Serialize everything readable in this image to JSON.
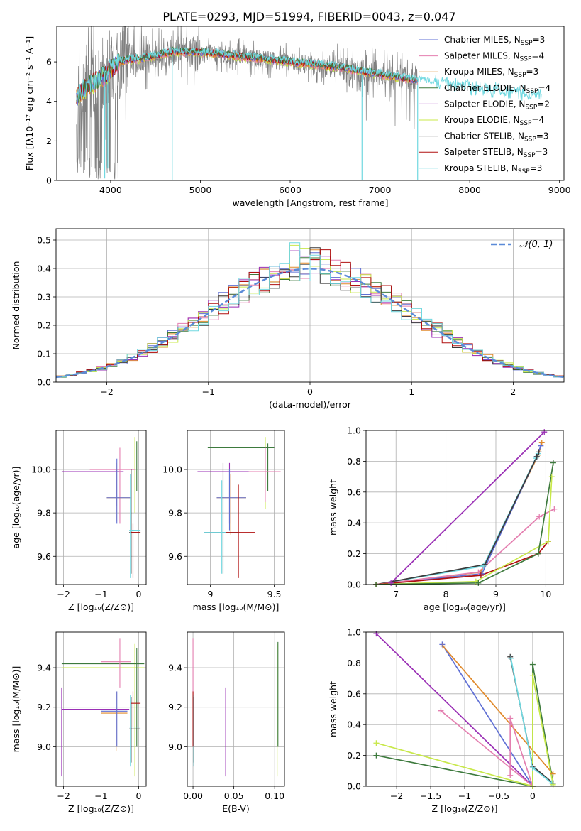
{
  "figure": {
    "title": "PLATE=0293, MJD=51994, FIBERID=0043, z=0.047"
  },
  "colors": {
    "chabrier_miles": "#5f6fd4",
    "salpeter_miles": "#e47fb0",
    "kroupa_miles": "#e08a2c",
    "chabrier_elodie": "#3d7a3d",
    "salpeter_elodie": "#9a2fb5",
    "kroupa_elodie": "#c8e84a",
    "chabrier_stelib": "#3a3a3a",
    "salpeter_stelib": "#b01010",
    "kroupa_stelib": "#70d8e0",
    "observed": "#808080",
    "normal": "#5b8bd8"
  },
  "chart_data": [
    {
      "id": "spectrum",
      "type": "line",
      "xlabel": "wavelength [Angstrom, rest frame]",
      "ylabel": "Flux [fλ10⁻¹⁷ erg cm⁻² s⁻¹ A⁻¹]",
      "xlim": [
        3400,
        9050
      ],
      "ylim": [
        0,
        7.8
      ],
      "xticks": [
        4000,
        5000,
        6000,
        7000,
        8000,
        9000
      ],
      "yticks": [
        0,
        2,
        4,
        6
      ],
      "legend_position": "top-right",
      "legend": [
        {
          "name": "Chabrier MILES, N",
          "sub": "SSP",
          "tail": "=3",
          "color_key": "chabrier_miles"
        },
        {
          "name": "Salpeter MILES, N",
          "sub": "SSP",
          "tail": "=4",
          "color_key": "salpeter_miles"
        },
        {
          "name": "Kroupa MILES, N",
          "sub": "SSP",
          "tail": "=3",
          "color_key": "kroupa_miles"
        },
        {
          "name": "Chabrier ELODIE, N",
          "sub": "SSP",
          "tail": "=4",
          "color_key": "chabrier_elodie"
        },
        {
          "name": "Salpeter ELODIE, N",
          "sub": "SSP",
          "tail": "=2",
          "color_key": "salpeter_elodie"
        },
        {
          "name": "Kroupa ELODIE, N",
          "sub": "SSP",
          "tail": "=4",
          "color_key": "kroupa_elodie"
        },
        {
          "name": "Chabrier STELIB, N",
          "sub": "SSP",
          "tail": "=3",
          "color_key": "chabrier_stelib"
        },
        {
          "name": "Salpeter STELIB, N",
          "sub": "SSP",
          "tail": "=3",
          "color_key": "salpeter_stelib"
        },
        {
          "name": "Kroupa STELIB, N",
          "sub": "SSP",
          "tail": "=3",
          "color_key": "kroupa_stelib"
        }
      ],
      "continuum": [
        [
          3620,
          4.2
        ],
        [
          3700,
          4.6
        ],
        [
          3800,
          4.9
        ],
        [
          3900,
          5.2
        ],
        [
          4000,
          5.6
        ],
        [
          4100,
          6.0
        ],
        [
          4200,
          6.1
        ],
        [
          4300,
          6.15
        ],
        [
          4400,
          6.2
        ],
        [
          4500,
          6.3
        ],
        [
          4700,
          6.55
        ],
        [
          4900,
          6.5
        ],
        [
          5100,
          6.45
        ],
        [
          5300,
          6.35
        ],
        [
          5500,
          6.25
        ],
        [
          5700,
          6.15
        ],
        [
          5900,
          6.05
        ],
        [
          6100,
          5.95
        ],
        [
          6300,
          5.85
        ],
        [
          6500,
          5.75
        ],
        [
          6700,
          5.6
        ],
        [
          6900,
          5.45
        ],
        [
          7100,
          5.3
        ],
        [
          7300,
          5.15
        ],
        [
          7500,
          5.0
        ],
        [
          7700,
          4.85
        ],
        [
          7900,
          4.7
        ],
        [
          8100,
          4.55
        ],
        [
          8300,
          4.45
        ],
        [
          8500,
          4.35
        ],
        [
          8800,
          4.25
        ]
      ],
      "observed_range": [
        3620,
        7420
      ],
      "dips": [
        {
          "x": 3934,
          "y": 0.1
        },
        {
          "x": 3968,
          "y": 0.6
        },
        {
          "x": 4686,
          "y": 0.0
        },
        {
          "x": 6800,
          "y": 0.0
        },
        {
          "x": 7420,
          "y": 0.0
        }
      ]
    },
    {
      "id": "residuals",
      "type": "step",
      "xlabel": "(data-model)/error",
      "ylabel": "Normed distribution",
      "xlim": [
        -2.5,
        2.5
      ],
      "ylim": [
        0,
        0.54
      ],
      "xticks": [
        -2,
        -1,
        0,
        1,
        2
      ],
      "yticks": [
        0.0,
        0.1,
        0.2,
        0.3,
        0.4,
        0.5
      ],
      "grid": true,
      "legend_position": "top-right",
      "normal_label": "𝒩(0, 1)",
      "bin_width": 0.1,
      "bin_start": -2.5
    },
    {
      "id": "age_vs_Z",
      "type": "errorbar",
      "xlabel": "Z [log₁₀(Z/Z⊙)]",
      "ylabel": "age  [log₁₀(age/yr)]",
      "xlim": [
        -2.2,
        0.2
      ],
      "ylim": [
        9.47,
        10.18
      ],
      "xticks": [
        -2,
        -1,
        0
      ],
      "yticks": [
        9.6,
        9.8,
        10.0
      ],
      "grid": true
    },
    {
      "id": "age_vs_mass",
      "type": "errorbar",
      "xlabel": "mass [log₁₀(M/M⊙)]",
      "ylabel": "",
      "xlim": [
        8.82,
        9.58
      ],
      "ylim": [
        9.47,
        10.18
      ],
      "xticks": [
        9.0,
        9.5
      ],
      "yticks": [
        9.6,
        9.8,
        10.0
      ],
      "grid": true
    },
    {
      "id": "weight_vs_age",
      "type": "line",
      "xlabel": "age  [log₁₀(age/yr)]",
      "ylabel": "mass weight",
      "xlim": [
        6.4,
        10.35
      ],
      "ylim": [
        0,
        1.0
      ],
      "xticks": [
        7,
        8,
        9,
        10
      ],
      "yticks": [
        0.0,
        0.2,
        0.4,
        0.6,
        0.8,
        1.0
      ],
      "grid": true,
      "series": [
        {
          "color_key": "salpeter_elodie",
          "x": [
            6.9,
            9.97
          ],
          "y": [
            0.01,
            0.99
          ]
        },
        {
          "color_key": "kroupa_miles",
          "x": [
            6.6,
            8.7,
            9.85,
            9.92
          ],
          "y": [
            0.0,
            0.08,
            0.84,
            0.92
          ]
        },
        {
          "color_key": "chabrier_miles",
          "x": [
            6.6,
            8.72,
            9.82,
            9.9
          ],
          "y": [
            0.0,
            0.07,
            0.83,
            0.9
          ]
        },
        {
          "color_key": "kroupa_stelib",
          "x": [
            6.6,
            8.75,
            9.8,
            9.85
          ],
          "y": [
            0.0,
            0.12,
            0.82,
            0.85
          ]
        },
        {
          "color_key": "chabrier_stelib",
          "x": [
            6.6,
            8.78,
            9.82,
            9.86
          ],
          "y": [
            0.0,
            0.13,
            0.83,
            0.86
          ]
        },
        {
          "color_key": "salpeter_miles",
          "x": [
            6.6,
            8.65,
            9.87,
            10.17
          ],
          "y": [
            0.0,
            0.08,
            0.44,
            0.49
          ]
        },
        {
          "color_key": "salpeter_stelib",
          "x": [
            6.6,
            8.7,
            9.85,
            10.05
          ],
          "y": [
            0.0,
            0.06,
            0.2,
            0.28
          ]
        },
        {
          "color_key": "kroupa_elodie",
          "x": [
            6.6,
            8.6,
            10.05,
            10.12
          ],
          "y": [
            0.0,
            0.02,
            0.28,
            0.7
          ]
        },
        {
          "color_key": "chabrier_elodie",
          "x": [
            6.6,
            8.65,
            9.85,
            10.15
          ],
          "y": [
            0.0,
            0.01,
            0.2,
            0.79
          ]
        }
      ]
    },
    {
      "id": "mass_vs_Z",
      "type": "errorbar",
      "xlabel": "Z [log₁₀(Z/Z⊙)]",
      "ylabel": "mass [log₁₀(M/M⊙)]",
      "xlim": [
        -2.2,
        0.2
      ],
      "ylim": [
        8.8,
        9.58
      ],
      "xticks": [
        -2,
        -1,
        0
      ],
      "yticks": [
        9.0,
        9.2,
        9.4
      ],
      "grid": true
    },
    {
      "id": "mass_vs_EBV",
      "type": "errorbar",
      "xlabel": "E(B-V)",
      "ylabel": "",
      "xlim": [
        -0.007,
        0.112
      ],
      "ylim": [
        8.8,
        9.58
      ],
      "xticks": [
        0.0,
        0.05,
        0.1
      ],
      "xtick_labels": [
        "0.00",
        "0.05",
        "0.10"
      ],
      "yticks": [
        9.0,
        9.2,
        9.4
      ],
      "grid": true
    },
    {
      "id": "weight_vs_Z",
      "type": "line",
      "xlabel": "Z [log₁₀(Z/Z⊙)]",
      "ylabel": "mass weight",
      "xlim": [
        -2.45,
        0.45
      ],
      "ylim": [
        0,
        1.0
      ],
      "xticks": [
        -2.0,
        -1.5,
        -1.0,
        -0.5,
        0.0
      ],
      "yticks": [
        0.0,
        0.2,
        0.4,
        0.6,
        0.8,
        1.0
      ],
      "grid": true,
      "series": [
        {
          "color_key": "salpeter_elodie",
          "x": [
            -2.3,
            0.0
          ],
          "y": [
            0.99,
            0.0
          ]
        },
        {
          "color_key": "chabrier_miles",
          "x": [
            -1.33,
            0.0
          ],
          "y": [
            0.92,
            0.0
          ]
        },
        {
          "color_key": "kroupa_miles",
          "x": [
            -1.32,
            0.3
          ],
          "y": [
            0.91,
            0.08
          ]
        },
        {
          "color_key": "salpeter_miles",
          "x": [
            -1.35,
            0.0,
            -0.33,
            -0.33
          ],
          "y": [
            0.49,
            0.0,
            0.44,
            0.07
          ]
        },
        {
          "color_key": "chabrier_stelib",
          "x": [
            -0.33,
            0.0,
            0.3
          ],
          "y": [
            0.84,
            0.13,
            0.02
          ]
        },
        {
          "color_key": "kroupa_stelib",
          "x": [
            -0.32,
            0.0,
            0.28
          ],
          "y": [
            0.83,
            0.12,
            0.02
          ]
        },
        {
          "color_key": "chabrier_elodie",
          "x": [
            -2.3,
            0.0,
            0.0,
            0.3
          ],
          "y": [
            0.2,
            0.0,
            0.79,
            0.02
          ]
        },
        {
          "color_key": "kroupa_elodie",
          "x": [
            -2.3,
            0.0,
            0.0,
            0.3
          ],
          "y": [
            0.28,
            0.0,
            0.72,
            0.01
          ]
        }
      ]
    }
  ]
}
